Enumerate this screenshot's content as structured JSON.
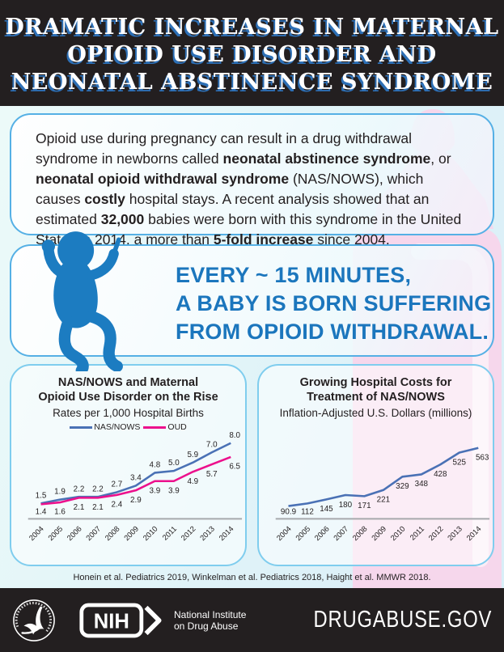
{
  "header": {
    "title_lines": [
      "DRAMATIC INCREASES IN MATERNAL",
      "OPIOID USE DISORDER AND",
      "NEONATAL ABSTINENCE SYNDROME"
    ]
  },
  "intro": {
    "segments": [
      {
        "text": "Opioid use during pregnancy can result in a drug withdrawal syndrome in newborns called ",
        "bold": false
      },
      {
        "text": "neonatal abstinence syndrome",
        "bold": true
      },
      {
        "text": ", or ",
        "bold": false
      },
      {
        "text": "neonatal opioid withdrawal syndrome",
        "bold": true
      },
      {
        "text": " (NAS/NOWS), which causes ",
        "bold": false
      },
      {
        "text": "costly",
        "bold": true
      },
      {
        "text": " hospital stays. A recent analysis showed that an estimated ",
        "bold": false
      },
      {
        "text": "32,000",
        "bold": true
      },
      {
        "text": " babies were born with this syndrome in the United States in 2014, a more than ",
        "bold": false
      },
      {
        "text": "5-fold increase",
        "bold": true
      },
      {
        "text": " since 2004.",
        "bold": false
      }
    ]
  },
  "callout": {
    "icon": "baby-icon",
    "lines": [
      "EVERY ~ 15 MINUTES,",
      "A BABY IS BORN SUFFERING",
      "FROM OPIOID WITHDRAWAL."
    ]
  },
  "chart_data": [
    {
      "type": "line",
      "title_lines": [
        "NAS/NOWS and Maternal",
        "Opioid Use Disorder on the Rise"
      ],
      "subtitle": "Rates per 1,000 Hospital Births",
      "categories": [
        "2004",
        "2005",
        "2006",
        "2007",
        "2008",
        "2009",
        "2010",
        "2011",
        "2012",
        "2013",
        "2014"
      ],
      "series": [
        {
          "name": "NAS/NOWS",
          "color": "#4a71b5",
          "label_position": "above",
          "values": [
            1.5,
            1.9,
            2.2,
            2.2,
            2.7,
            3.4,
            4.8,
            5.0,
            5.9,
            7.0,
            8.0
          ],
          "labels": [
            "1.5",
            "1.9",
            "2.2",
            "2.2",
            "2.7",
            "3.4",
            "4.8",
            "5.0",
            "5.9",
            "7.0",
            "8.0"
          ]
        },
        {
          "name": "OUD",
          "color": "#ec108c",
          "label_position": "below",
          "values": [
            1.4,
            1.6,
            2.1,
            2.1,
            2.4,
            2.9,
            3.9,
            3.9,
            4.9,
            5.7,
            6.5
          ],
          "labels": [
            "1.4",
            "1.6",
            "2.1",
            "2.1",
            "2.4",
            "2.9",
            "3.9",
            "3.9",
            "4.9",
            "5.7",
            "6.5"
          ]
        }
      ],
      "ylim": [
        0,
        9.3
      ],
      "legend": true,
      "grid": false
    },
    {
      "type": "line",
      "title_lines": [
        "Growing Hospital Costs for",
        "Treatment of NAS/NOWS"
      ],
      "subtitle": "Inflation-Adjusted U.S. Dollars (millions)",
      "categories": [
        "2004",
        "2005",
        "2006",
        "2007",
        "2008",
        "2009",
        "2010",
        "2011",
        "2012",
        "2013",
        "2014"
      ],
      "series": [
        {
          "name": "NAS/NOWS treatment cost",
          "color": "#4a71b5",
          "label_position": "below",
          "values": [
            90.9,
            112,
            145,
            180,
            171,
            221,
            329,
            348,
            428,
            525,
            563
          ],
          "labels": [
            "90.9",
            "112",
            "145",
            "180",
            "171",
            "221",
            "329",
            "348",
            "428",
            "525",
            "563"
          ]
        }
      ],
      "ylim": [
        0,
        700
      ],
      "legend": false,
      "grid": false
    }
  ],
  "citation": "Honein et al. Pediatrics 2019, Winkelman et al. Pediatrics 2018, Haight et al. MMWR 2018.",
  "footer": {
    "hhs_logo": "hhs-eagle-icon",
    "nih_logo_text": "NIH",
    "nih_institute_lines": [
      "National Institute",
      "on Drug Abuse"
    ],
    "site": "DRUGABUSE.GOV"
  },
  "colors": {
    "background_dark": "#231f20",
    "title_shadow_blue": "#2d6fb5",
    "mid_background_cyan": "#e0f3f8",
    "bottle_pink": "#f6d7ec",
    "card_border_blue": "#55b0e5",
    "chart_card_border_cyan": "#7fcdee",
    "callout_text_blue": "#1b76bd",
    "baby_icon_blue": "#1c7cc1",
    "nas_line_blue": "#4a71b5",
    "oud_line_pink": "#ec108c",
    "axis_gray": "#a7a9ac"
  }
}
